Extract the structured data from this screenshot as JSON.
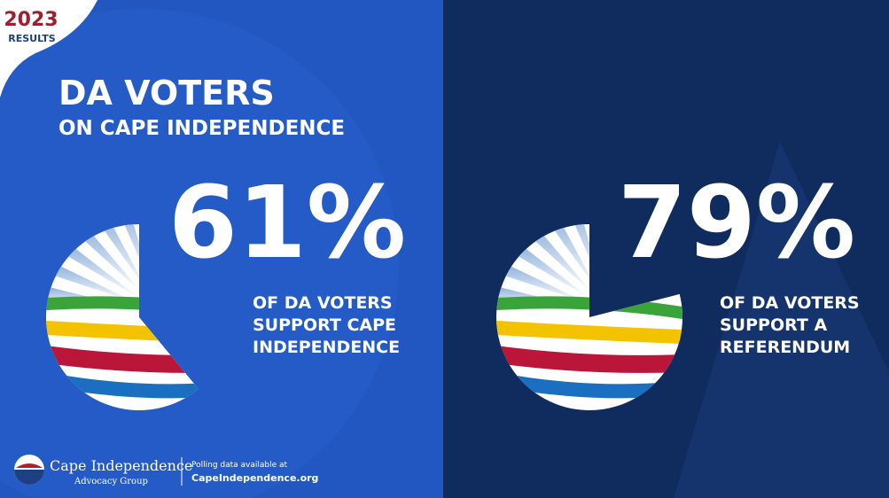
{
  "badge": {
    "year": "2023",
    "label": "RESULTS"
  },
  "title": {
    "line1": "DA VOTERS",
    "line2": "ON CAPE INDEPENDENCE"
  },
  "panels": [
    {
      "value": 61,
      "value_label": "61%",
      "caption": [
        "OF DA VOTERS",
        "SUPPORT CAPE",
        "INDEPENDENCE"
      ]
    },
    {
      "value": 79,
      "value_label": "79%",
      "caption": [
        "OF DA VOTERS",
        "SUPPORT A",
        "REFERENDUM"
      ]
    }
  ],
  "footer": {
    "org_name": "Cape Independence",
    "org_subtitle": "Advocacy Group",
    "note": "Polling data available at",
    "url": "CapeIndependence.org"
  }
}
